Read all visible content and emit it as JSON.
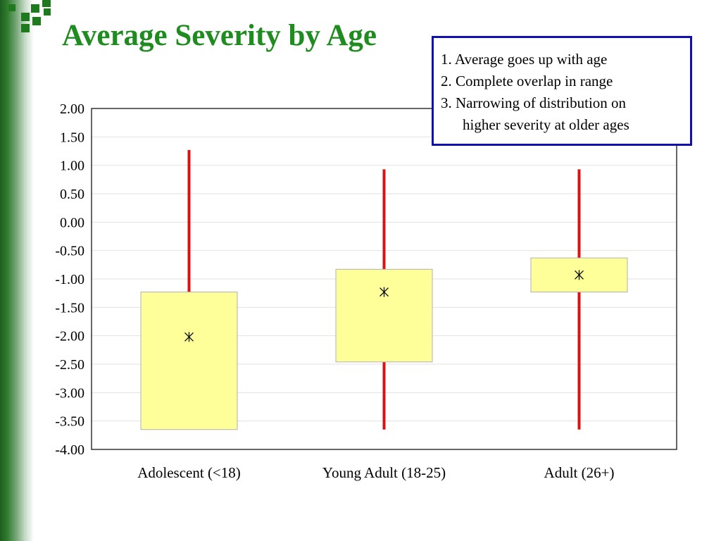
{
  "title": "Average Severity by Age",
  "notes": [
    "1. Average goes up with age",
    "2. Complete overlap in range",
    "3. Narrowing of distribution on",
    "higher severity at older ages"
  ],
  "colors": {
    "title": "#1e8c1e",
    "whisker": "#e01010",
    "box_fill": "#ffff99",
    "box_stroke": "#b0b0b0",
    "note_border": "#1010b0",
    "accent_green": "#1f7a1f"
  },
  "chart_data": {
    "type": "boxplot",
    "title": "",
    "xlabel": "",
    "ylabel": "",
    "ylim": [
      -4.0,
      2.0
    ],
    "yticks": [
      "2.00",
      "1.50",
      "1.00",
      "0.50",
      "0.00",
      "-0.50",
      "-1.00",
      "-1.50",
      "-2.00",
      "-2.50",
      "-3.00",
      "-3.50",
      "-4.00"
    ],
    "grid": true,
    "categories": [
      "Adolescent (<18)",
      "Young Adult (18-25)",
      "Adult (26+)"
    ],
    "boxes": [
      {
        "category": "Adolescent (<18)",
        "min": -3.65,
        "max": 1.27,
        "q1": -3.65,
        "q3": -1.23,
        "mean": -2.02
      },
      {
        "category": "Young Adult (18-25)",
        "min": -3.65,
        "max": 0.93,
        "q1": -2.46,
        "q3": -0.83,
        "mean": -1.23
      },
      {
        "category": "Adult (26+)",
        "min": -3.65,
        "max": 0.93,
        "q1": -1.23,
        "q3": -0.63,
        "mean": -0.93
      }
    ]
  }
}
